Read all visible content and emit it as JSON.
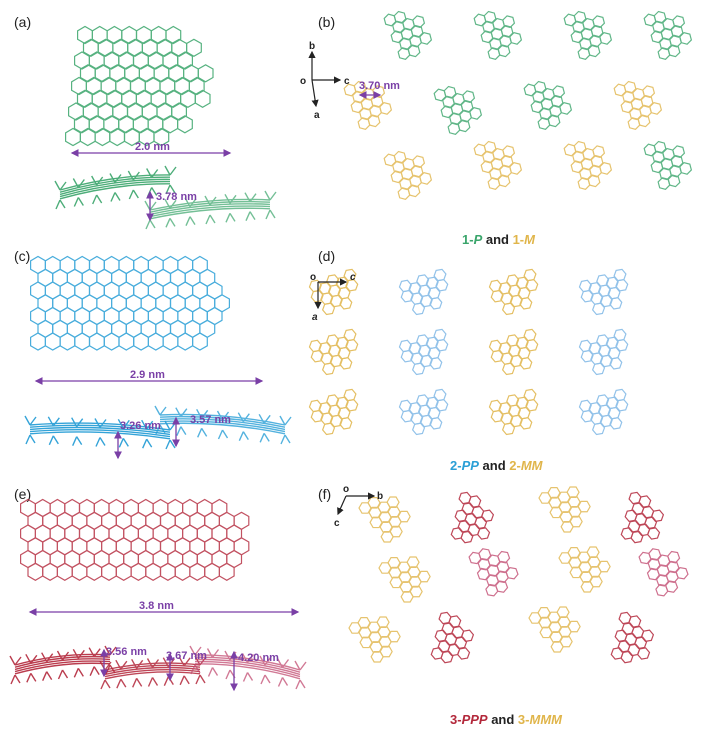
{
  "panels": [
    {
      "label": "(a)"
    },
    {
      "label": "(b)"
    },
    {
      "label": "(c)"
    },
    {
      "label": "(d)"
    },
    {
      "label": "(e)"
    },
    {
      "label": "(f)"
    }
  ],
  "a": {
    "width": "2.0 nm",
    "stack": "3.78 nm"
  },
  "b": {
    "spacing": "3.70 nm",
    "axes": {
      "origin": "o",
      "x": "c",
      "y": "b",
      "z": "a"
    },
    "caption": {
      "p1": "1-",
      "p1i": "P",
      "and": " and ",
      "m1": "1-",
      "m1i": "M"
    }
  },
  "c": {
    "width": "2.9 nm",
    "d1": "3.26 nm",
    "d2": "3.57 nm"
  },
  "d": {
    "axes": {
      "origin": "o",
      "x": "c",
      "y": "a"
    },
    "caption": {
      "p1": "2-",
      "p1i": "PP",
      "and": " and ",
      "m1": "2-",
      "m1i": "MM"
    }
  },
  "e": {
    "width": "3.8 nm",
    "d1": "3.56 nm",
    "d2": "3.67 nm",
    "d3": "4.20 nm"
  },
  "f": {
    "axes": {
      "origin": "o",
      "x": "b",
      "y": "c"
    },
    "caption": {
      "p1": "3-",
      "p1i": "PPP",
      "and": " and ",
      "m1": "3-",
      "m1i": "MMM"
    }
  },
  "colors": {
    "green": "#3aa56b",
    "gold": "#e0b54a",
    "blue": "#2a9fd6",
    "lightblue": "#7fb8e6",
    "red": "#b3283b",
    "pink": "#c24d72",
    "purple": "#7a3fa6",
    "text": "#222222"
  }
}
